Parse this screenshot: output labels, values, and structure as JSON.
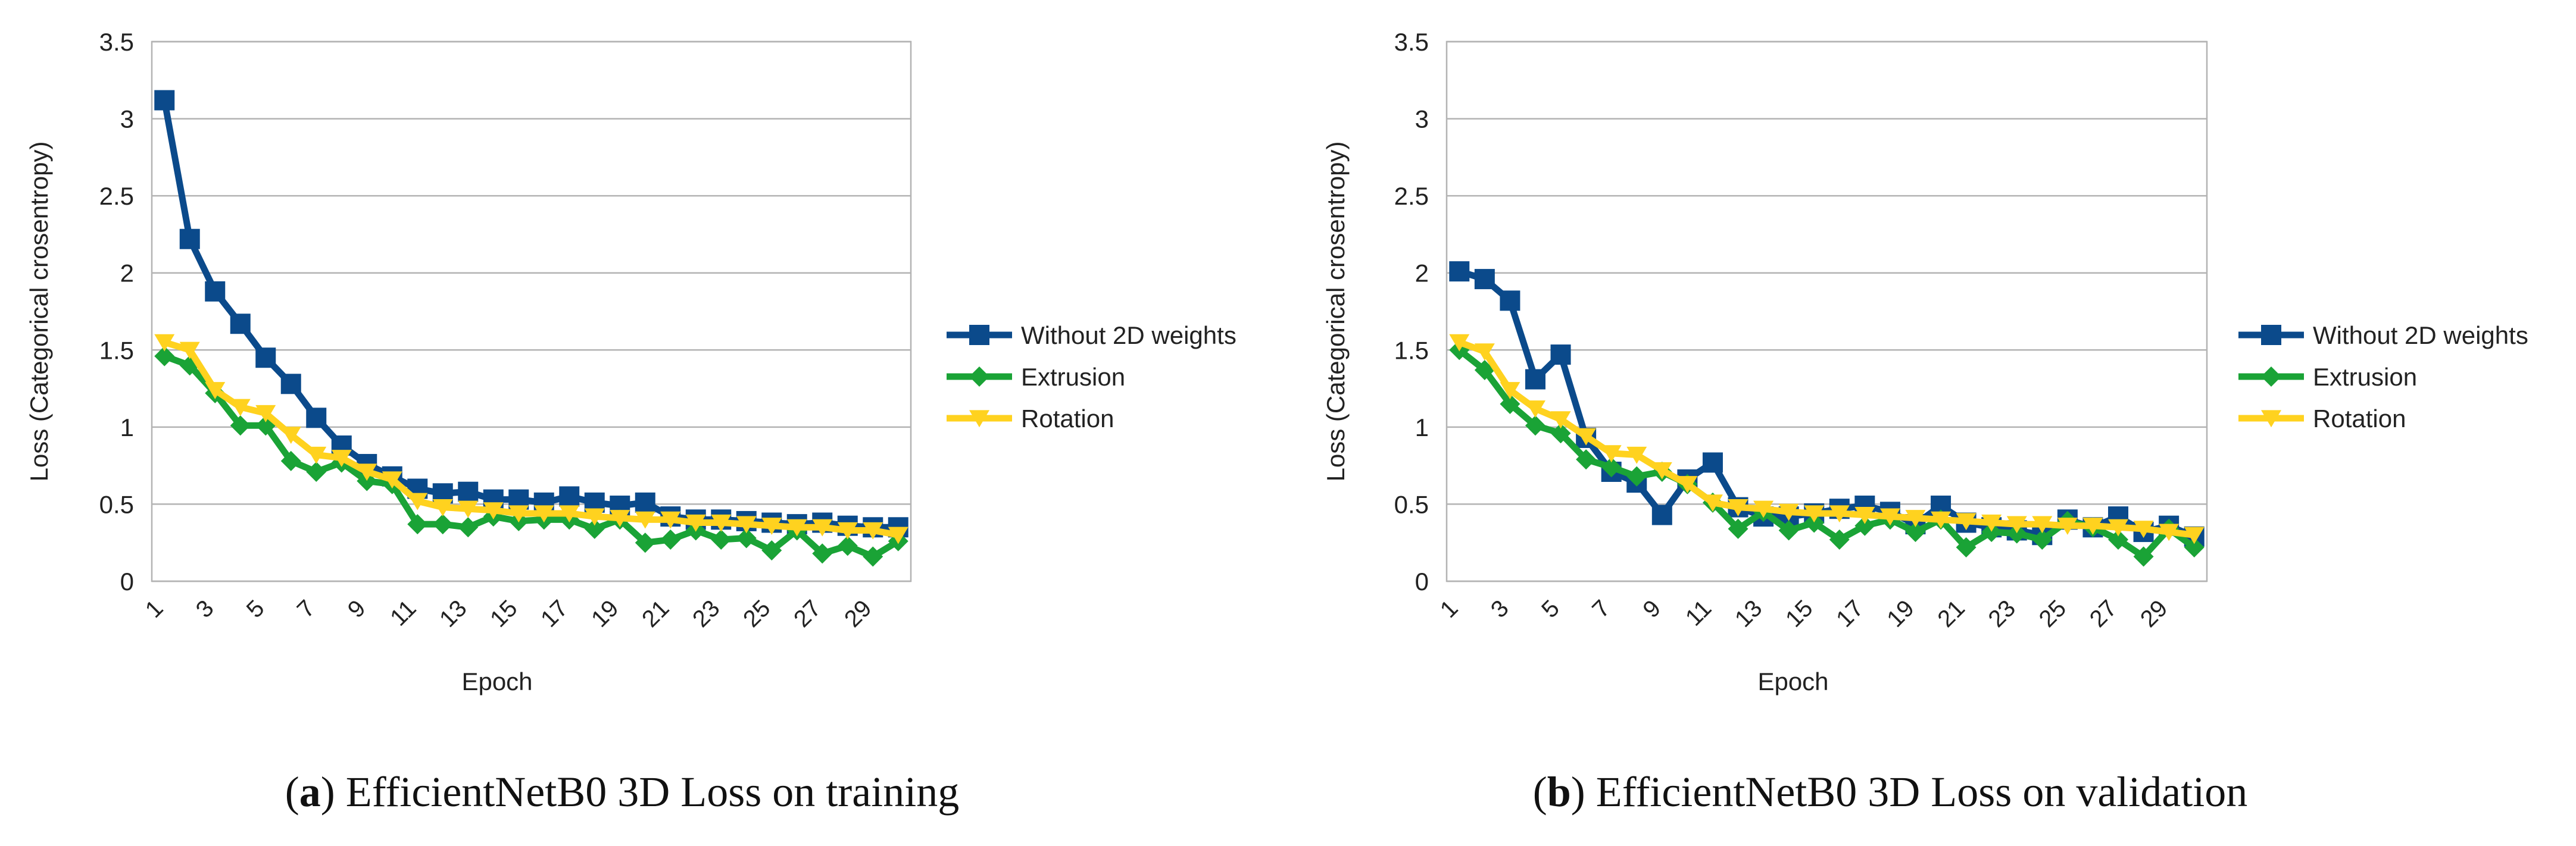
{
  "figure": {
    "captions": [
      {
        "letter": "a",
        "open": "(",
        "close": ")",
        "text": " EfficientNetB0 3D Loss on training"
      },
      {
        "letter": "b",
        "open": "(",
        "close": ")",
        "text": " EfficientNetB0 3D Loss on validation"
      }
    ]
  },
  "chart_data": [
    {
      "type": "line",
      "title": "",
      "xlabel": "Epoch",
      "ylabel": "Loss (Categorical crosentropy)",
      "ylim": [
        0,
        3.5
      ],
      "yticks": [
        "0",
        "0.5",
        "1",
        "1.5",
        "2",
        "2.5",
        "3",
        "3.5"
      ],
      "x": [
        1,
        2,
        3,
        4,
        5,
        6,
        7,
        8,
        9,
        10,
        11,
        12,
        13,
        14,
        15,
        16,
        17,
        18,
        19,
        20,
        21,
        22,
        23,
        24,
        25,
        26,
        27,
        28,
        29,
        30
      ],
      "xtick_labels": [
        "1",
        "3",
        "5",
        "7",
        "9",
        "11",
        "13",
        "15",
        "17",
        "19",
        "21",
        "23",
        "25",
        "27",
        "29"
      ],
      "legend_position": "right",
      "grid": true,
      "series": [
        {
          "name": "Without 2D weights",
          "color": "#0b4a8b",
          "marker": "square",
          "values": [
            3.12,
            2.22,
            1.88,
            1.67,
            1.45,
            1.28,
            1.06,
            0.88,
            0.76,
            0.68,
            0.6,
            0.57,
            0.58,
            0.53,
            0.53,
            0.51,
            0.55,
            0.51,
            0.49,
            0.51,
            0.42,
            0.4,
            0.4,
            0.39,
            0.38,
            0.37,
            0.38,
            0.36,
            0.35,
            0.35
          ]
        },
        {
          "name": "Extrusion",
          "color": "#1aa336",
          "marker": "diamond",
          "values": [
            1.46,
            1.4,
            1.22,
            1.01,
            1.01,
            0.78,
            0.71,
            0.77,
            0.65,
            0.63,
            0.37,
            0.37,
            0.35,
            0.42,
            0.39,
            0.4,
            0.4,
            0.34,
            0.4,
            0.25,
            0.27,
            0.33,
            0.27,
            0.28,
            0.2,
            0.33,
            0.18,
            0.23,
            0.16,
            0.26
          ]
        },
        {
          "name": "Rotation",
          "color": "#ffd21f",
          "marker": "triangle",
          "values": [
            1.55,
            1.5,
            1.24,
            1.13,
            1.09,
            0.95,
            0.82,
            0.8,
            0.71,
            0.66,
            0.52,
            0.48,
            0.47,
            0.46,
            0.44,
            0.44,
            0.44,
            0.42,
            0.41,
            0.4,
            0.4,
            0.38,
            0.38,
            0.37,
            0.36,
            0.35,
            0.35,
            0.33,
            0.33,
            0.3
          ]
        }
      ]
    },
    {
      "type": "line",
      "title": "",
      "xlabel": "Epoch",
      "ylabel": "Loss (Categorical crosentropy)",
      "ylim": [
        0,
        3.5
      ],
      "yticks": [
        "0",
        "0.5",
        "1",
        "1.5",
        "2",
        "2.5",
        "3",
        "3.5"
      ],
      "x": [
        1,
        2,
        3,
        4,
        5,
        6,
        7,
        8,
        9,
        10,
        11,
        12,
        13,
        14,
        15,
        16,
        17,
        18,
        19,
        20,
        21,
        22,
        23,
        24,
        25,
        26,
        27,
        28,
        29,
        30
      ],
      "xtick_labels": [
        "1",
        "3",
        "5",
        "7",
        "9",
        "11",
        "13",
        "15",
        "17",
        "19",
        "21",
        "23",
        "25",
        "27",
        "29"
      ],
      "legend_position": "right",
      "grid": true,
      "series": [
        {
          "name": "Without 2D weights",
          "color": "#0b4a8b",
          "marker": "square",
          "values": [
            2.01,
            1.96,
            1.82,
            1.31,
            1.47,
            0.93,
            0.71,
            0.64,
            0.43,
            0.66,
            0.77,
            0.48,
            0.42,
            0.42,
            0.44,
            0.47,
            0.49,
            0.45,
            0.37,
            0.49,
            0.38,
            0.35,
            0.33,
            0.3,
            0.4,
            0.35,
            0.42,
            0.32,
            0.36,
            0.29
          ]
        },
        {
          "name": "Extrusion",
          "color": "#1aa336",
          "marker": "diamond",
          "values": [
            1.5,
            1.37,
            1.15,
            1.01,
            0.96,
            0.79,
            0.74,
            0.68,
            0.71,
            0.63,
            0.51,
            0.34,
            0.45,
            0.33,
            0.38,
            0.27,
            0.36,
            0.4,
            0.32,
            0.4,
            0.22,
            0.32,
            0.31,
            0.27,
            0.39,
            0.35,
            0.27,
            0.16,
            0.34,
            0.22
          ]
        },
        {
          "name": "Rotation",
          "color": "#ffd21f",
          "marker": "triangle",
          "values": [
            1.55,
            1.49,
            1.24,
            1.12,
            1.05,
            0.94,
            0.83,
            0.82,
            0.72,
            0.63,
            0.51,
            0.48,
            0.47,
            0.45,
            0.44,
            0.44,
            0.43,
            0.42,
            0.41,
            0.4,
            0.39,
            0.38,
            0.37,
            0.37,
            0.36,
            0.36,
            0.35,
            0.34,
            0.32,
            0.3
          ]
        }
      ]
    }
  ]
}
